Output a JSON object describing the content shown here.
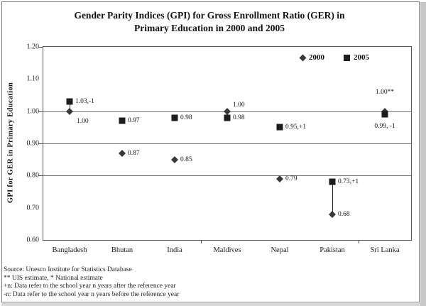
{
  "figure": {
    "title_line1": "Gender Parity Indices (GPI) for Gross Enrollment Ratio (GER) in",
    "title_line2": "Primary Education in 2000 and 2005"
  },
  "chart_data": {
    "type": "scatter",
    "title": "Gender Parity Indices (GPI) for Gross Enrollment Ratio (GER) in Primary Education in 2000 and 2005",
    "ylabel": "GPI for GER in Primary Education",
    "ylim": [
      0.6,
      1.2
    ],
    "yticks": [
      "1.20",
      "1.10",
      "1.00",
      "0.90",
      "0.80",
      "0.70",
      "0.60"
    ],
    "ytick_values": [
      1.2,
      1.1,
      1.0,
      0.9,
      0.8,
      0.7,
      0.6
    ],
    "gridline_values": [
      1.0,
      0.9,
      0.8
    ],
    "grid": "horizontal",
    "categories": [
      "Bangladesh",
      "Bhutan",
      "India",
      "Maldives",
      "Nepal",
      "Pakistan",
      "Sri Lanka"
    ],
    "series": [
      {
        "name": "2000",
        "marker": "diamond",
        "values": [
          1.0,
          0.87,
          0.85,
          1.0,
          0.79,
          0.68,
          1.0
        ],
        "point_labels": [
          "1.00",
          "0.87",
          "0.85",
          "1.00",
          "0.79",
          "0.68",
          "1.00**"
        ]
      },
      {
        "name": "2005",
        "marker": "square",
        "values": [
          1.03,
          0.97,
          0.98,
          0.98,
          0.95,
          0.73,
          0.99
        ],
        "point_labels": [
          "1.03,-1",
          "0.97",
          "0.98",
          "0.98",
          "0.95,+1",
          "0.73,+1",
          "0.99, -1"
        ]
      }
    ],
    "hi_lo_line_categories": [
      "Bangladesh",
      "Maldives",
      "Pakistan"
    ],
    "legend": {
      "entries": [
        "2000",
        "2005"
      ],
      "position": "top-right-inside"
    },
    "marker_color": "#2b2b2b"
  },
  "footnotes": [
    "Source: Unesco Institute for Statistics Database",
    "** UIS estimate, * National estimate",
    "+n: Data refer to the school year n years after the reference year",
    "-n: Data refer to the school year n years before the reference year"
  ]
}
